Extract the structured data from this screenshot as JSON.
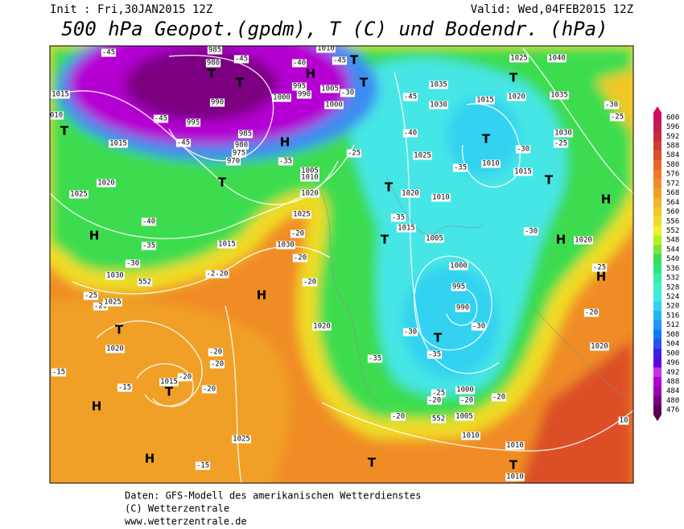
{
  "header": {
    "init": "Init : Fri,30JAN2015 12Z",
    "valid": "Valid: Wed,04FEB2015 12Z",
    "title": "500 hPa Geopot.(gpdm), T (C) und Bodendr. (hPa)"
  },
  "map": {
    "labels": [
      "-45",
      "985",
      "980",
      "-45",
      "-40",
      "1010",
      "-45",
      "1015",
      "995",
      "990",
      "1005",
      "1000",
      "1000",
      "-30",
      "990",
      "995",
      "-45",
      "010",
      "1015",
      "-45",
      "985",
      "980",
      "975",
      "970",
      "-35",
      "1005",
      "1010",
      "1020",
      "1025",
      "1025",
      "1020",
      "-40",
      "-35",
      "-30",
      "1030",
      "552",
      "1015",
      "1030",
      "-20",
      "-20",
      "-2-20",
      "-20",
      "-25",
      "-20",
      "1025",
      "1020",
      "-20",
      "-20",
      "-20",
      "1015",
      "-15",
      "-15",
      "-20",
      "1025",
      "-15",
      "1020",
      "1025",
      "1040",
      "1035",
      "-45",
      "1030",
      "1015",
      "1020",
      "1035",
      "-30",
      "-25",
      "1030",
      "-25",
      "-25",
      "-40",
      "1025",
      "-35",
      "1010",
      "1015",
      "-30",
      "1020",
      "1010",
      "-35",
      "1015",
      "1005",
      "-30",
      "1020",
      "-25",
      "1000",
      "995",
      "990",
      "-30",
      "-30",
      "-35",
      "-35",
      "1020",
      "-20",
      "1000",
      "-25",
      "-20",
      "-20",
      "-20",
      "-20",
      "552",
      "1005",
      "1010",
      "1010",
      "1010",
      "10"
    ],
    "centers": [
      "T",
      "T",
      "T",
      "T",
      "T",
      "T",
      "T",
      "T",
      "T",
      "T",
      "T",
      "T",
      "T",
      "T",
      "T",
      "T",
      "H",
      "H",
      "H",
      "H",
      "H",
      "H",
      "H",
      "H",
      "H"
    ]
  },
  "colorbar": {
    "entries": [
      {
        "value": 600,
        "color": "#d20a64"
      },
      {
        "value": 596,
        "color": "#be1e50"
      },
      {
        "value": 592,
        "color": "#c8283c"
      },
      {
        "value": 588,
        "color": "#d23c32"
      },
      {
        "value": 584,
        "color": "#dc5028"
      },
      {
        "value": 580,
        "color": "#e66428"
      },
      {
        "value": 576,
        "color": "#f07828"
      },
      {
        "value": 572,
        "color": "#f08c28"
      },
      {
        "value": 568,
        "color": "#f0a028"
      },
      {
        "value": 564,
        "color": "#f0b428"
      },
      {
        "value": 560,
        "color": "#f0c828"
      },
      {
        "value": 556,
        "color": "#f0dc28"
      },
      {
        "value": 552,
        "color": "#f0f028"
      },
      {
        "value": 548,
        "color": "#b4f028"
      },
      {
        "value": 544,
        "color": "#78e632"
      },
      {
        "value": 540,
        "color": "#3cdc50"
      },
      {
        "value": 536,
        "color": "#28e678"
      },
      {
        "value": 532,
        "color": "#32f0a0"
      },
      {
        "value": 528,
        "color": "#3cf0c8"
      },
      {
        "value": 524,
        "color": "#46e6e6"
      },
      {
        "value": 520,
        "color": "#32d2f0"
      },
      {
        "value": 516,
        "color": "#28b4f0"
      },
      {
        "value": 512,
        "color": "#1e96f0"
      },
      {
        "value": 508,
        "color": "#1478f0"
      },
      {
        "value": 504,
        "color": "#2850f0"
      },
      {
        "value": 500,
        "color": "#3c1ee6"
      },
      {
        "value": 496,
        "color": "#6400dc"
      },
      {
        "value": 492,
        "color": "#c832e6"
      },
      {
        "value": 488,
        "color": "#b400d2"
      },
      {
        "value": 484,
        "color": "#9a00b4"
      },
      {
        "value": 480,
        "color": "#7a0080"
      },
      {
        "value": 476,
        "color": "#5a0050"
      }
    ]
  },
  "footer": {
    "lines": [
      "Daten: GFS-Modell des amerikanischen Wetterdienstes",
      "(C) Wetterzentrale",
      "www.wetterzentrale.de"
    ]
  }
}
